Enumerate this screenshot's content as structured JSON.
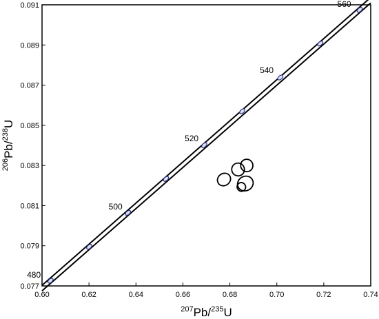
{
  "chart_data": {
    "type": "scatter",
    "subtype": "U-Pb concordia diagram with data-point error ellipses",
    "title": "",
    "xlabel": {
      "sup1": "207",
      "base1": "Pb/",
      "sup2": "235",
      "base2": "U"
    },
    "ylabel": {
      "sup1": "206",
      "base1": "Pb/",
      "sup2": "238",
      "base2": "U"
    },
    "xlim": [
      0.6,
      0.74
    ],
    "ylim": [
      0.077,
      0.091
    ],
    "xticks": [
      "0.60",
      "0.62",
      "0.64",
      "0.66",
      "0.68",
      "0.70",
      "0.72",
      "0.74"
    ],
    "yticks": [
      "0.077",
      "0.079",
      "0.081",
      "0.083",
      "0.085",
      "0.087",
      "0.089",
      "0.091"
    ],
    "grid": false,
    "concordia_age_labels": [
      {
        "text": "480",
        "x": 0.6018,
        "y": 0.0772
      },
      {
        "text": "500",
        "x": 0.6366,
        "y": 0.0806
      },
      {
        "text": "520",
        "x": 0.669,
        "y": 0.084
      },
      {
        "text": "540",
        "x": 0.701,
        "y": 0.0874
      },
      {
        "text": "560",
        "x": 0.734,
        "y": 0.0907
      }
    ],
    "concordia_age_markers": [
      {
        "x": 0.6036,
        "y": 0.07726
      },
      {
        "x": 0.6201,
        "y": 0.07895
      },
      {
        "x": 0.6366,
        "y": 0.08064
      },
      {
        "x": 0.6528,
        "y": 0.08233
      },
      {
        "x": 0.6691,
        "y": 0.08401
      },
      {
        "x": 0.6853,
        "y": 0.0857
      },
      {
        "x": 0.7015,
        "y": 0.08738
      },
      {
        "x": 0.7185,
        "y": 0.08907
      },
      {
        "x": 0.7353,
        "y": 0.09075
      }
    ],
    "error_ellipses": [
      {
        "x": 0.6835,
        "y": 0.0828,
        "rx": 0.0027,
        "ry": 0.00032,
        "angle": -0.52
      },
      {
        "x": 0.6872,
        "y": 0.083,
        "rx": 0.0026,
        "ry": 0.00031,
        "angle": -0.55
      },
      {
        "x": 0.6775,
        "y": 0.0823,
        "rx": 0.0029,
        "ry": 0.0003,
        "angle": -0.6
      },
      {
        "x": 0.6866,
        "y": 0.0821,
        "rx": 0.0034,
        "ry": 0.00036,
        "angle": -0.5
      },
      {
        "x": 0.6849,
        "y": 0.08193,
        "rx": 0.0018,
        "ry": 0.00022,
        "angle": -0.45
      }
    ],
    "colors": {
      "lines": "#000000",
      "marker_fill": "#e0e4f2",
      "marker_stroke": "#2a2f8a"
    }
  }
}
